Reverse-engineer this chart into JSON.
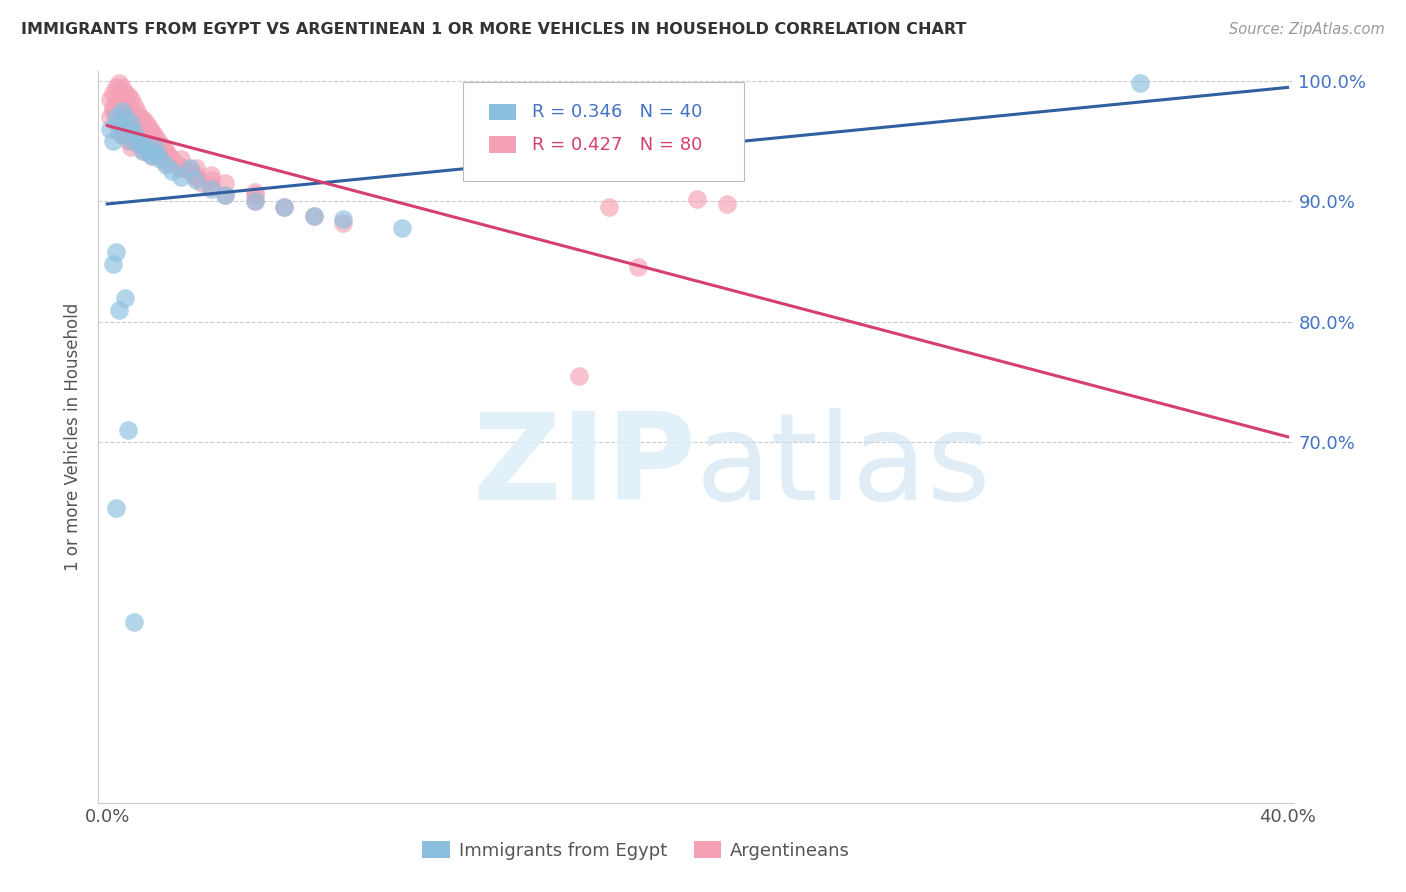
{
  "title": "IMMIGRANTS FROM EGYPT VS ARGENTINEAN 1 OR MORE VEHICLES IN HOUSEHOLD CORRELATION CHART",
  "source": "Source: ZipAtlas.com",
  "ylabel": "1 or more Vehicles in Household",
  "watermark_zip": "ZIP",
  "watermark_atlas": "atlas",
  "xlim": [
    -0.003,
    0.402
  ],
  "ylim": [
    0.4,
    1.008
  ],
  "xtick_positions": [
    0.0,
    0.05,
    0.1,
    0.15,
    0.2,
    0.25,
    0.3,
    0.35,
    0.4
  ],
  "xticklabels": [
    "0.0%",
    "",
    "",
    "",
    "",
    "",
    "",
    "",
    "40.0%"
  ],
  "ytick_positions": [
    0.7,
    0.8,
    0.9,
    1.0
  ],
  "ytick_labels": [
    "70.0%",
    "80.0%",
    "90.0%",
    "100.0%"
  ],
  "legend_r1": "R = 0.346",
  "legend_n1": "N = 40",
  "legend_r2": "R = 0.427",
  "legend_n2": "N = 80",
  "blue_color": "#8bbfde",
  "pink_color": "#f4a0b5",
  "blue_line_color": "#3060a0",
  "pink_line_color": "#d44070",
  "label_color_blue": "#4472C4",
  "label_color_pink": "#d44070",
  "blue_x": [
    0.001,
    0.002,
    0.003,
    0.004,
    0.005,
    0.005,
    0.006,
    0.007,
    0.008,
    0.008,
    0.009,
    0.01,
    0.011,
    0.012,
    0.013,
    0.014,
    0.015,
    0.016,
    0.017,
    0.018,
    0.02,
    0.022,
    0.025,
    0.028,
    0.03,
    0.035,
    0.04,
    0.05,
    0.06,
    0.07,
    0.08,
    0.1,
    0.002,
    0.003,
    0.004,
    0.006,
    0.007,
    0.003,
    0.009,
    0.35
  ],
  "blue_y": [
    0.96,
    0.95,
    0.97,
    0.965,
    0.975,
    0.955,
    0.97,
    0.96,
    0.965,
    0.95,
    0.958,
    0.952,
    0.948,
    0.942,
    0.945,
    0.94,
    0.938,
    0.945,
    0.94,
    0.935,
    0.93,
    0.925,
    0.92,
    0.928,
    0.918,
    0.91,
    0.905,
    0.9,
    0.895,
    0.888,
    0.885,
    0.878,
    0.848,
    0.858,
    0.81,
    0.82,
    0.71,
    0.645,
    0.55,
    0.998
  ],
  "pink_x": [
    0.001,
    0.001,
    0.002,
    0.002,
    0.003,
    0.003,
    0.004,
    0.004,
    0.005,
    0.005,
    0.006,
    0.006,
    0.007,
    0.007,
    0.008,
    0.008,
    0.009,
    0.009,
    0.01,
    0.01,
    0.011,
    0.011,
    0.012,
    0.012,
    0.013,
    0.013,
    0.014,
    0.015,
    0.016,
    0.017,
    0.018,
    0.019,
    0.02,
    0.021,
    0.022,
    0.024,
    0.026,
    0.028,
    0.03,
    0.032,
    0.035,
    0.04,
    0.05,
    0.06,
    0.07,
    0.08,
    0.003,
    0.004,
    0.005,
    0.006,
    0.007,
    0.008,
    0.01,
    0.012,
    0.015,
    0.02,
    0.025,
    0.03,
    0.035,
    0.04,
    0.05,
    0.002,
    0.003,
    0.004,
    0.006,
    0.007,
    0.008,
    0.01,
    0.012,
    0.015,
    0.02,
    0.025,
    0.03,
    0.035,
    0.05,
    0.17,
    0.2,
    0.21,
    0.18,
    0.16
  ],
  "pink_y": [
    0.985,
    0.97,
    0.99,
    0.975,
    0.995,
    0.98,
    0.998,
    0.985,
    0.995,
    0.982,
    0.99,
    0.978,
    0.988,
    0.975,
    0.985,
    0.972,
    0.98,
    0.968,
    0.975,
    0.962,
    0.97,
    0.958,
    0.968,
    0.955,
    0.965,
    0.952,
    0.962,
    0.958,
    0.955,
    0.952,
    0.948,
    0.945,
    0.942,
    0.938,
    0.935,
    0.93,
    0.928,
    0.925,
    0.92,
    0.915,
    0.912,
    0.905,
    0.9,
    0.895,
    0.888,
    0.882,
    0.965,
    0.958,
    0.962,
    0.955,
    0.95,
    0.945,
    0.958,
    0.952,
    0.945,
    0.94,
    0.935,
    0.928,
    0.922,
    0.915,
    0.908,
    0.978,
    0.972,
    0.968,
    0.962,
    0.958,
    0.952,
    0.948,
    0.942,
    0.938,
    0.932,
    0.928,
    0.922,
    0.918,
    0.905,
    0.895,
    0.902,
    0.898,
    0.845,
    0.755
  ]
}
